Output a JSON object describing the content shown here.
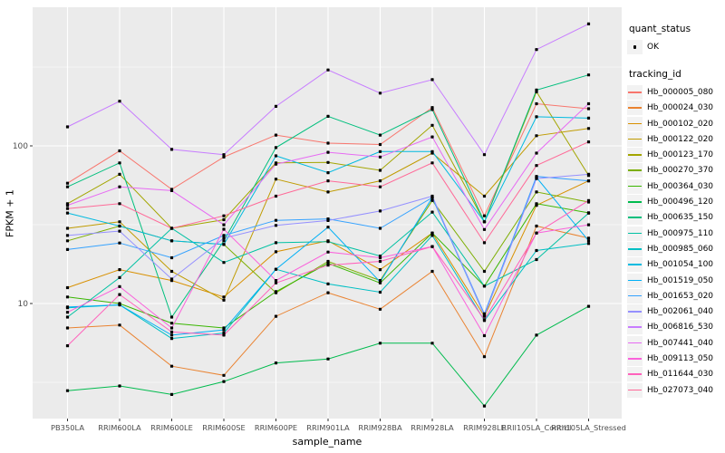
{
  "figure": {
    "panel_bg": "#EBEBEB",
    "grid_color": "#FFFFFF",
    "axis_text_color": "#4D4D4D",
    "point_color": "#000000",
    "x_axis_title": "sample_name",
    "y_axis_title": "FPKM + 1",
    "legend": {
      "quant_status_title": "quant_status",
      "quant_status_items": [
        {
          "label": "OK",
          "marker": "black-square-point"
        }
      ],
      "tracking_id_title": "tracking_id"
    }
  },
  "chart_data": {
    "type": "line",
    "title": "",
    "xlabel": "sample_name",
    "ylabel": "FPKM + 1",
    "yscale": "log10",
    "yticks": [
      10,
      100
    ],
    "ytick_labels": [
      "10",
      "100"
    ],
    "minor_gridlines": [
      3.1623,
      31.623,
      316.23
    ],
    "ylim": [
      1.8,
      760
    ],
    "grid": true,
    "legend_position": "right",
    "point_marker": "small black square on every point (quant_status = OK)",
    "x": [
      "PB350LA",
      "RRIM600LA",
      "RRIM600LE",
      "RRIM600SE",
      "RRIM600PE",
      "RRIM901LA",
      "RRIM928BA",
      "RRIM928LA",
      "RRIM928LE",
      "RRII105LA_Control",
      "RRII105LA_Stressed"
    ],
    "series": [
      {
        "name": "Hb_000005_080",
        "color": "#F8766D",
        "values": [
          58,
          93,
          53,
          85,
          117,
          104,
          102,
          175,
          36,
          185,
          172
        ]
      },
      {
        "name": "Hb_000024_030",
        "color": "#EA8331",
        "values": [
          7.0,
          7.3,
          4.0,
          3.5,
          8.3,
          11.7,
          9.2,
          16,
          4.6,
          31,
          26
        ]
      },
      {
        "name": "Hb_000102_020",
        "color": "#D89000",
        "values": [
          12.6,
          16.4,
          14,
          11,
          21.3,
          25,
          16.4,
          28,
          8.3,
          42,
          60
        ]
      },
      {
        "name": "Hb_000122_020",
        "color": "#C09B00",
        "values": [
          30,
          33,
          16,
          10.5,
          61.5,
          51,
          60,
          90,
          48,
          116,
          129
        ]
      },
      {
        "name": "Hb_000123_170",
        "color": "#A3A500",
        "values": [
          43,
          66,
          30,
          34,
          78,
          78.5,
          70,
          135,
          33,
          220,
          65
        ]
      },
      {
        "name": "Hb_000270_370",
        "color": "#7CAE00",
        "values": [
          25,
          31,
          25,
          23.7,
          11.7,
          18.5,
          14,
          45,
          16,
          51,
          44
        ]
      },
      {
        "name": "Hb_000364_030",
        "color": "#39B600",
        "values": [
          11,
          10,
          7.5,
          7.0,
          11.9,
          18,
          13.5,
          28,
          12.9,
          43,
          37.6
        ]
      },
      {
        "name": "Hb_000496_120",
        "color": "#00BB4E",
        "values": [
          2.8,
          3.0,
          2.65,
          3.2,
          4.2,
          4.45,
          5.6,
          5.6,
          2.24,
          6.3,
          9.6
        ]
      },
      {
        "name": "Hb_000635_150",
        "color": "#00BF7D",
        "values": [
          55,
          78,
          8.2,
          25,
          97.5,
          154,
          117,
          170,
          33,
          226,
          282
        ]
      },
      {
        "name": "Hb_000975_110",
        "color": "#00C1A3",
        "values": [
          8.2,
          14.6,
          30,
          18.2,
          24.3,
          24.7,
          20,
          38,
          12.9,
          19,
          37.4
        ]
      },
      {
        "name": "Hb_000985_060",
        "color": "#00BFC4",
        "values": [
          9.4,
          9.8,
          6.0,
          6.5,
          16.5,
          13.3,
          11.8,
          27,
          7.8,
          21.7,
          24
        ]
      },
      {
        "name": "Hb_001054_100",
        "color": "#00BAE0",
        "values": [
          37.5,
          31,
          25,
          23.7,
          86.5,
          67.6,
          92,
          92,
          33,
          153,
          150
        ]
      },
      {
        "name": "Hb_001519_050",
        "color": "#00B0F6",
        "values": [
          9.5,
          9.8,
          6.3,
          6.8,
          16.5,
          30.5,
          13.7,
          47,
          8.4,
          63,
          25
        ]
      },
      {
        "name": "Hb_001653_020",
        "color": "#35A2FF",
        "values": [
          22,
          24.2,
          19.5,
          27,
          33.7,
          34.4,
          30,
          47,
          8.6,
          64,
          60
        ]
      },
      {
        "name": "Hb_002061_040",
        "color": "#9590FF",
        "values": [
          27,
          28.8,
          14.3,
          26,
          31.3,
          33.6,
          38.6,
          48,
          8.4,
          62,
          66
        ]
      },
      {
        "name": "Hb_006816_530",
        "color": "#C77CFF",
        "values": [
          132,
          192,
          95,
          88,
          178,
          303,
          216,
          263,
          88,
          408,
          594
        ]
      },
      {
        "name": "Hb_007441_040",
        "color": "#E76BF3",
        "values": [
          42,
          55,
          52,
          31.6,
          76.5,
          91,
          85,
          114,
          29.5,
          90,
          185
        ]
      },
      {
        "name": "Hb_009113_050",
        "color": "#FA62DB",
        "values": [
          8.8,
          12.8,
          7.0,
          29.6,
          14.0,
          21.2,
          19.5,
          23,
          6.25,
          28,
          31.6
        ]
      },
      {
        "name": "Hb_011644_030",
        "color": "#FF62BC",
        "values": [
          5.4,
          11.4,
          6.6,
          6.3,
          13.5,
          17.5,
          18.5,
          23,
          7.9,
          28,
          45
        ]
      },
      {
        "name": "Hb_027073_040",
        "color": "#FF6A98",
        "values": [
          40,
          43,
          30,
          36,
          48,
          60,
          55,
          78,
          24.3,
          75,
          106
        ]
      }
    ]
  }
}
